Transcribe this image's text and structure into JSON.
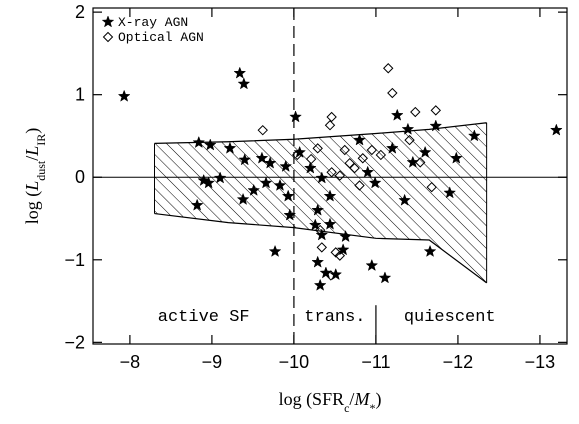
{
  "chart_data": {
    "type": "scatter",
    "xlabel": [
      {
        "text": "log (SFR"
      },
      {
        "text": "c",
        "style": "sub"
      },
      {
        "text": "/"
      },
      {
        "text": "M",
        "style": "italic"
      },
      {
        "text": "*",
        "style": "sub"
      },
      {
        "text": ")"
      }
    ],
    "ylabel": [
      {
        "text": "log ("
      },
      {
        "text": "L",
        "style": "italic"
      },
      {
        "text": "dust",
        "style": "sub"
      },
      {
        "text": "/"
      },
      {
        "text": "L",
        "style": "italic"
      },
      {
        "text": "IR",
        "style": "sub"
      },
      {
        "text": ")"
      }
    ],
    "xlim": [
      -7.55,
      -13.33
    ],
    "ylim": [
      -2.02,
      2.05
    ],
    "xticks": [
      {
        "value": -8,
        "label": "−8"
      },
      {
        "value": -9,
        "label": "−9"
      },
      {
        "value": -10,
        "label": "−10"
      },
      {
        "value": -11,
        "label": "−11"
      },
      {
        "value": -12,
        "label": "−12"
      },
      {
        "value": -13,
        "label": "−13"
      }
    ],
    "yticks": [
      {
        "value": -2,
        "label": "−2"
      },
      {
        "value": -1,
        "label": "−1"
      },
      0,
      1,
      2
    ],
    "legend": "upper left",
    "series": [
      {
        "name": "X-ray AGN",
        "marker": "star",
        "color": "#000000",
        "x": [
          -7.93,
          -9.34,
          -9.39,
          -10.02,
          -13.2,
          -8.84,
          -8.98,
          -9.22,
          -9.61,
          -9.4,
          -9.71,
          -9.9,
          -8.9,
          -8.96,
          -9.1,
          -8.82,
          -9.38,
          -9.51,
          -9.66,
          -9.83,
          -9.93,
          -9.95,
          -9.77,
          -10.07,
          -10.2,
          -10.34,
          -10.44,
          -10.29,
          -10.26,
          -10.34,
          -10.44,
          -10.29,
          -10.32,
          -10.39,
          -10.51,
          -10.6,
          -10.63,
          -10.8,
          -10.9,
          -10.99,
          -10.95,
          -11.11,
          -11.26,
          -11.39,
          -11.35,
          -11.45,
          -11.6,
          -11.73,
          -11.9,
          -11.66,
          -11.98,
          -12.2,
          -11.2
        ],
        "values": [
          0.98,
          1.26,
          1.13,
          0.73,
          0.57,
          0.42,
          0.39,
          0.35,
          0.23,
          0.21,
          0.17,
          0.13,
          -0.04,
          -0.07,
          -0.01,
          -0.34,
          -0.27,
          -0.16,
          -0.07,
          -0.1,
          -0.23,
          -0.46,
          -0.9,
          0.3,
          0.11,
          -0.01,
          -0.23,
          -0.4,
          -0.58,
          -0.7,
          -0.57,
          -1.03,
          -1.31,
          -1.16,
          -1.18,
          -0.88,
          -0.72,
          0.45,
          0.06,
          -0.07,
          -1.07,
          -1.22,
          0.75,
          0.58,
          -0.28,
          0.18,
          0.3,
          0.62,
          -0.19,
          -0.9,
          0.23,
          0.5,
          0.35
        ]
      },
      {
        "name": "Optical AGN",
        "marker": "diamond",
        "color": "#000000",
        "x": [
          -9.62,
          -10.29,
          -10.44,
          -10.46,
          -10.62,
          -10.68,
          -10.74,
          -10.8,
          -10.84,
          -10.56,
          -10.95,
          -11.06,
          -11.15,
          -11.2,
          -11.48,
          -11.73,
          -10.46,
          -10.32,
          -10.51,
          -10.34,
          -10.56,
          -10.45,
          -11.54,
          -11.68,
          -10.04,
          -10.21,
          -11.41
        ],
        "values": [
          0.57,
          0.35,
          0.63,
          0.73,
          0.33,
          0.17,
          0.11,
          -0.1,
          0.23,
          0.02,
          0.33,
          0.27,
          1.32,
          1.02,
          0.79,
          0.81,
          0.06,
          -0.64,
          -0.91,
          -0.85,
          -0.95,
          -1.19,
          0.18,
          -0.12,
          0.27,
          0.22,
          0.45
        ]
      }
    ],
    "band": {
      "x": [
        -8.3,
        -9.2,
        -10,
        -11,
        -11.65,
        -12.35
      ],
      "upper": [
        0.41,
        0.43,
        0.46,
        0.53,
        0.58,
        0.66
      ],
      "lower": [
        -0.44,
        -0.55,
        -0.61,
        -0.74,
        -0.76,
        -1.28
      ]
    },
    "reference_lines": [
      {
        "axis": "y",
        "value": 0
      },
      {
        "axis": "x",
        "value": -10,
        "dashed": true
      },
      {
        "axis": "x",
        "value": -11,
        "from": -1.55
      }
    ],
    "annotations": [
      {
        "text": "active SF",
        "x": -8.9,
        "y": -1.67
      },
      {
        "text": "trans.",
        "x": -10.5,
        "y": -1.67
      },
      {
        "text": "quiescent",
        "x": -11.9,
        "y": -1.67
      }
    ]
  }
}
